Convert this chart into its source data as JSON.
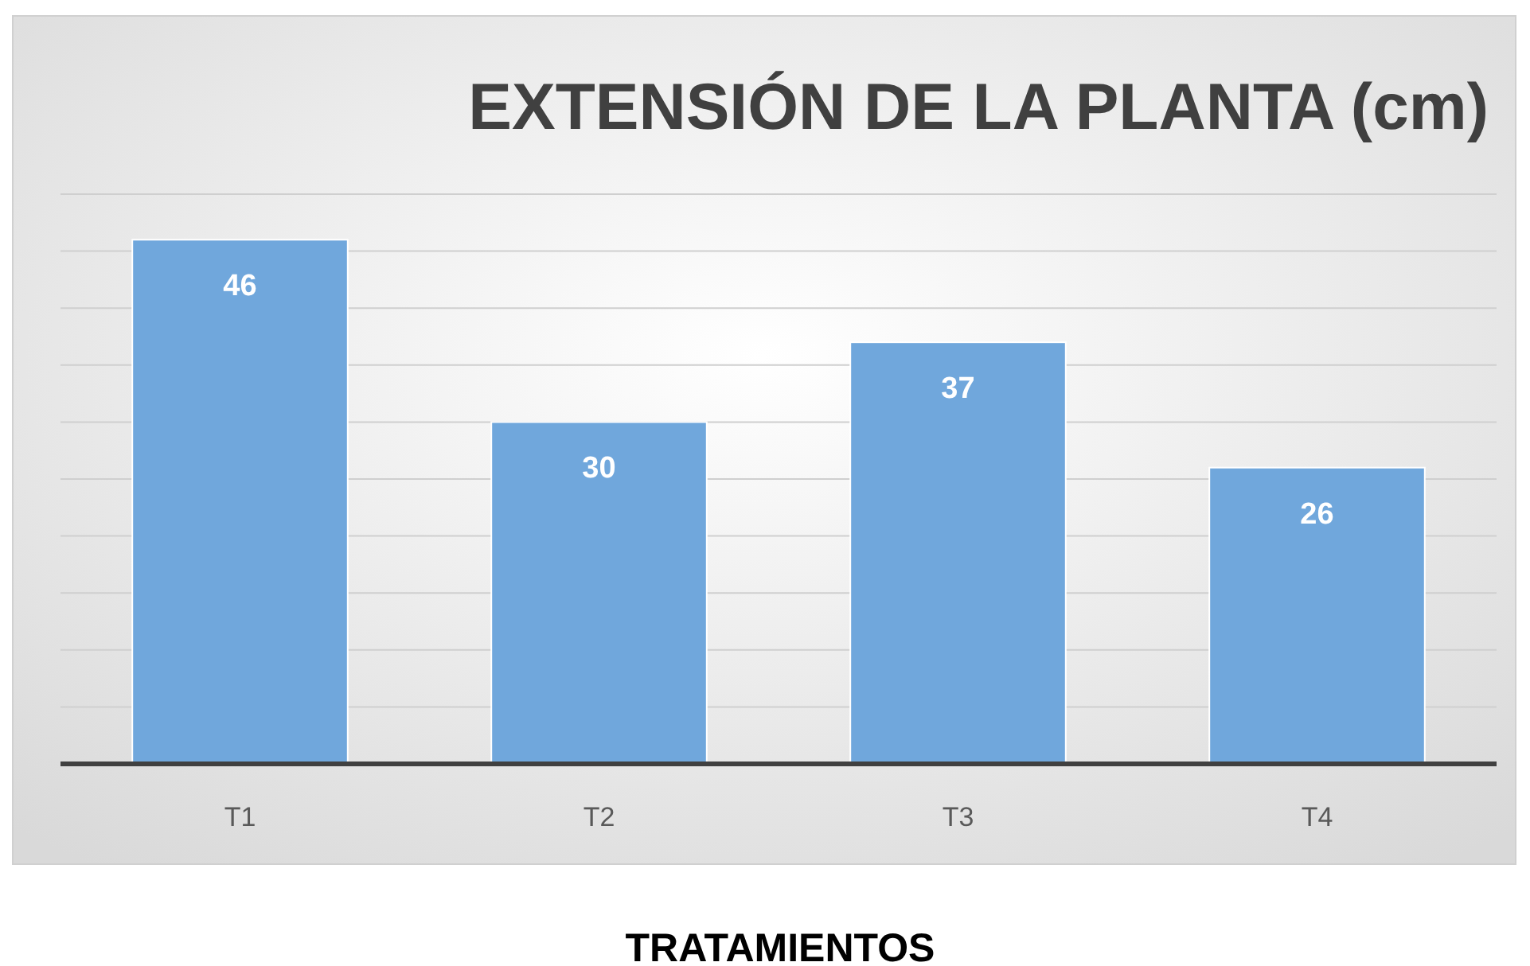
{
  "chart_data": {
    "type": "bar",
    "title": "EXTENSIÓN DE LA PLANTA (cm)",
    "xlabel": "TRATAMIENTOS",
    "categories": [
      "T1",
      "T2",
      "T3",
      "T4"
    ],
    "values": [
      46,
      30,
      37,
      26
    ],
    "color": "#70a7dc",
    "data_labels": true,
    "ylim": [
      0,
      50
    ],
    "yticks": [
      {
        "value": 0,
        "label": null
      },
      {
        "value": 5,
        "label": null
      },
      {
        "value": 10,
        "label": null
      },
      {
        "value": 15,
        "label": null
      },
      {
        "value": 20,
        "label": null
      },
      {
        "value": 25,
        "label": null
      },
      {
        "value": 30,
        "label": null
      },
      {
        "value": 35,
        "label": null
      },
      {
        "value": 40,
        "label": null
      },
      {
        "value": 45,
        "label": null
      },
      {
        "value": 50,
        "label": null
      }
    ],
    "grid": "y",
    "tick_labels": "x"
  }
}
